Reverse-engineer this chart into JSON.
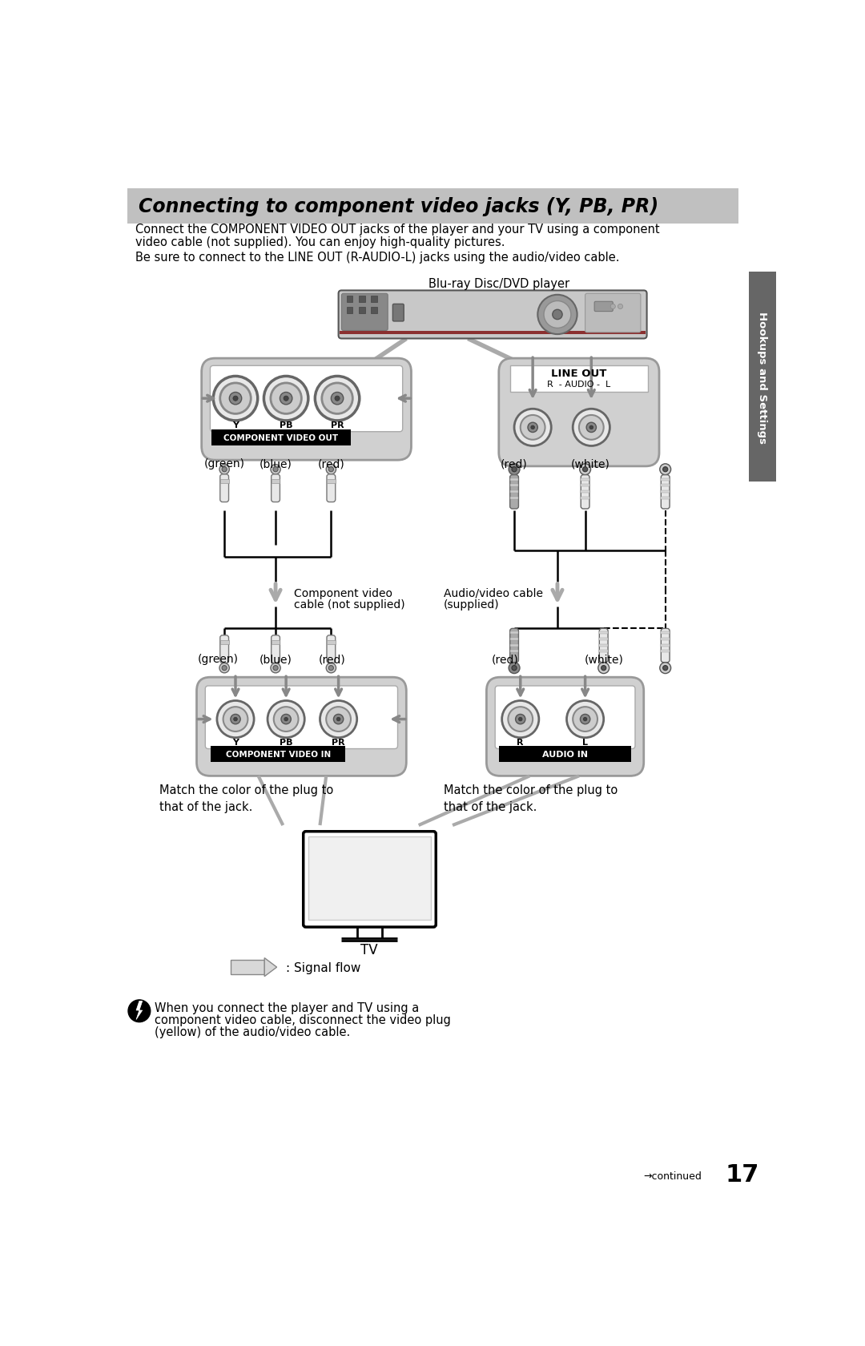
{
  "title_text": "Connecting to component video jacks (Y, PB, PR)",
  "bg_color": "#ffffff",
  "title_bg": "#c0c0c0",
  "body_line1": "Connect the COMPONENT VIDEO OUT jacks of the player and your TV using a component",
  "body_line2": "video cable (not supplied). You can enjoy high-quality pictures.",
  "body_line3": "Be sure to connect to the LINE OUT (R-AUDIO-L) jacks using the audio/video cable.",
  "bluray_label": "Blu-ray Disc/DVD player",
  "comp_out_label": "COMPONENT VIDEO OUT",
  "line_out_label": "LINE OUT",
  "audio_mid_label": "- AUDIO -",
  "r_label": "R",
  "l_label": "L",
  "comp_in_label": "COMPONENT VIDEO IN",
  "audio_in_label": "AUDIO IN",
  "comp_cable_lbl1": "Component video",
  "comp_cable_lbl2": "cable (not supplied)",
  "av_cable_lbl1": "Audio/video cable",
  "av_cable_lbl2": "(supplied)",
  "signal_flow_lbl": ": Signal flow",
  "note_line1": "When you connect the player and TV using a",
  "note_line2": "component video cable, disconnect the video plug",
  "note_line3": "(yellow) of the audio/video cable.",
  "continued": "→continued",
  "page_num": "17",
  "sidebar_txt": "Hookups and Settings",
  "green_top": "(green)",
  "blue_top": "(blue)",
  "red_top": "(red)",
  "red_right_top": "(red)",
  "white_right_top": "(white)",
  "green_bot": "(green)",
  "blue_bot": "(blue)",
  "red_bot": "(red)",
  "red_right_bot": "(red)",
  "white_right_bot": "(white)",
  "tv_label": "TV",
  "y_lbl": "Y",
  "pb_lbl": "PB",
  "pr_lbl": "PR",
  "match_color_left": "Match the color of the plug to\nthat of the jack.",
  "match_color_right": "Match the color of the plug to\nthat of the jack."
}
